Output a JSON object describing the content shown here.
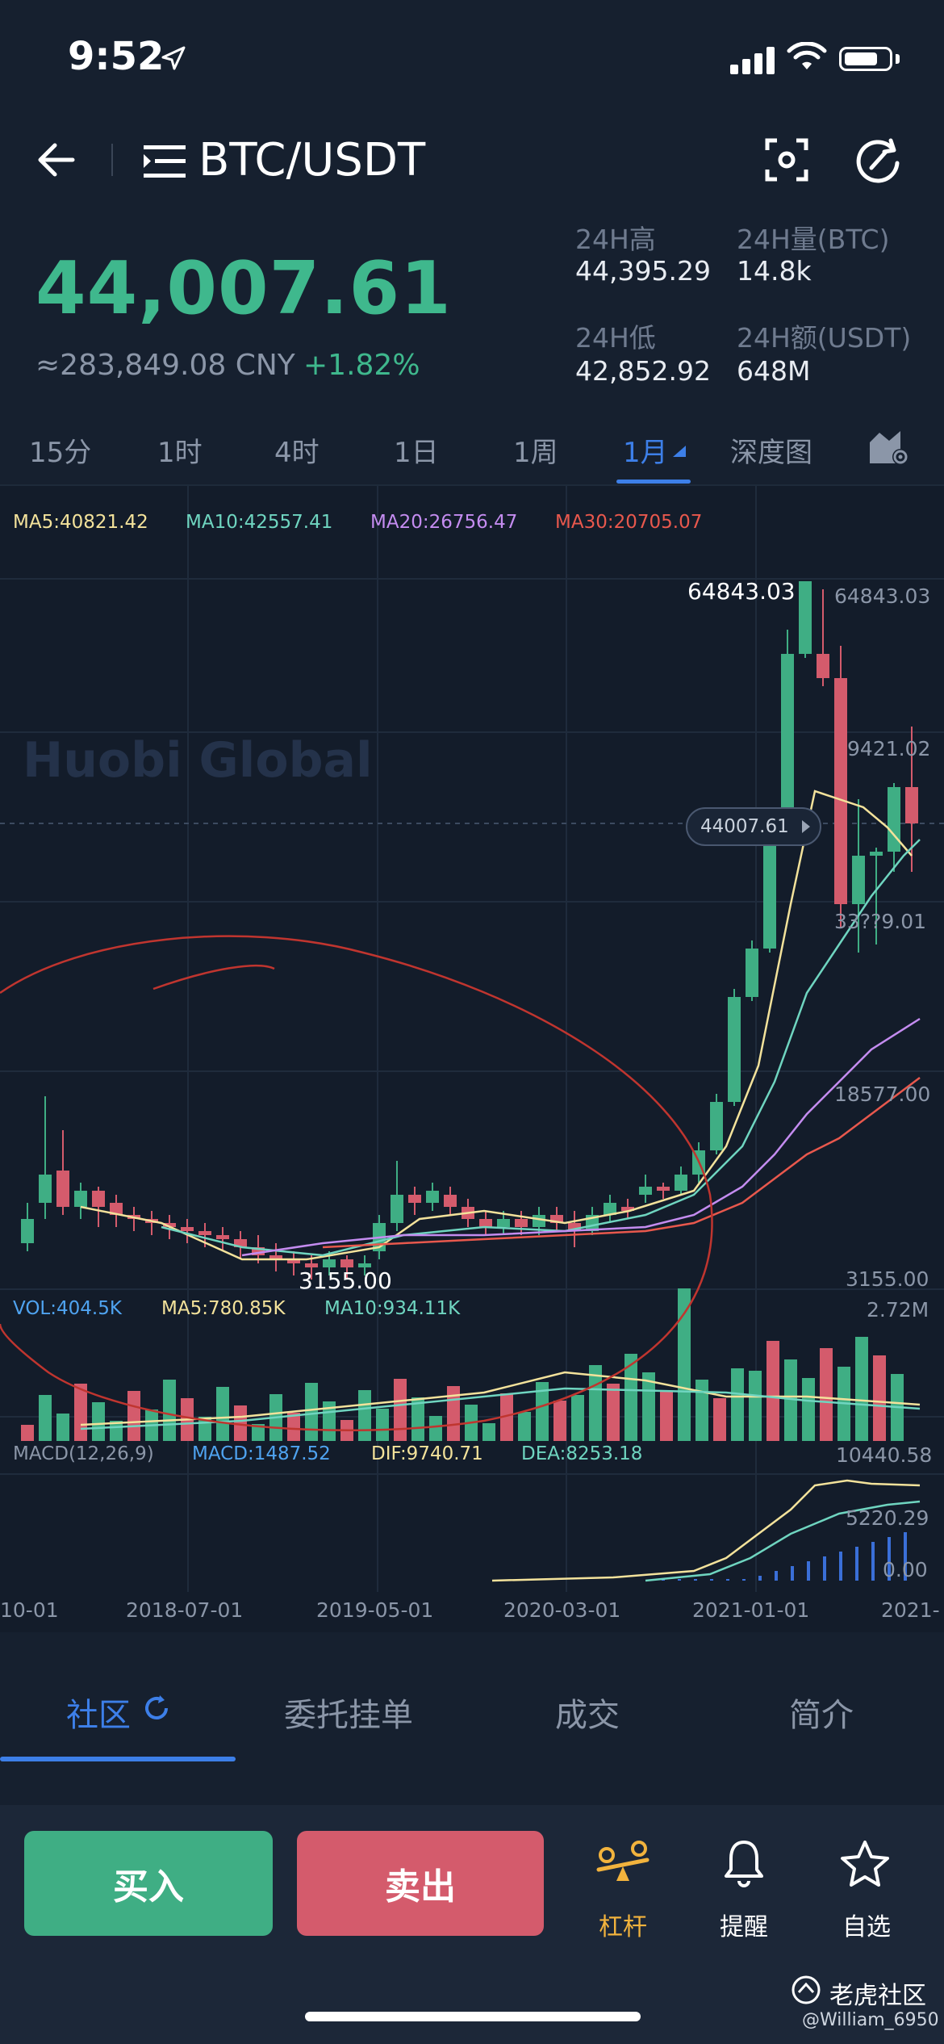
{
  "status": {
    "time": "9:52"
  },
  "header": {
    "pair": "BTC/USDT"
  },
  "ticker": {
    "price": "44,007.61",
    "cny": "≈283,849.08 CNY",
    "change": "+1.82%",
    "high_label": "24H高",
    "high": "44,395.29",
    "vol_label": "24H量(BTC)",
    "vol": "14.8k",
    "low_label": "24H低",
    "low": "42,852.92",
    "amt_label": "24H额(USDT)",
    "amt": "648M"
  },
  "tabs": [
    "15分",
    "1时",
    "4时",
    "1日",
    "1周",
    "1月",
    "深度图"
  ],
  "active_tab": "1月",
  "indicators": {
    "ma5": "MA5:40821.42",
    "ma10": "MA10:42557.41",
    "ma20": "MA20:26756.47",
    "ma30": "MA30:20705.07",
    "vol": "VOL:404.5K",
    "vol_ma5": "MA5:780.85K",
    "vol_ma10": "MA10:934.11K",
    "macd_name": "MACD(12,26,9)",
    "macd": "MACD:1487.52",
    "dif": "DIF:9740.71",
    "dea": "DEA:8253.18"
  },
  "axis": {
    "price_ticks": [
      "64843.03",
      "9421.02",
      "33??9.01",
      "18577.00",
      "3155.00"
    ],
    "max_marker": "64843.03",
    "min_marker": "3155.00",
    "current_price_tag": "44007.61",
    "vol_max": "2.72M",
    "macd_ticks": [
      "10440.58",
      "5220.29",
      "0.00"
    ],
    "dates": [
      "10-01",
      "2018-07-01",
      "2019-05-01",
      "2020-03-01",
      "2021-01-01",
      "2021-"
    ],
    "watermark": "Huobi Global"
  },
  "colors": {
    "up": "#3fae84",
    "down": "#d45b6c",
    "accent": "#3d7fe8",
    "ma5": "#f3e29b",
    "ma10": "#6fd5c0",
    "ma20": "#c48cf0",
    "ma30": "#e8584d"
  },
  "bottom_tabs": [
    "社区",
    "委托挂单",
    "成交",
    "简介"
  ],
  "actions": {
    "buy": "买入",
    "sell": "卖出",
    "leverage": "杠杆",
    "alert": "提醒",
    "favorite": "自选"
  },
  "footer_watermark": {
    "brand": "老虎社区",
    "user": "@William_6950"
  }
}
